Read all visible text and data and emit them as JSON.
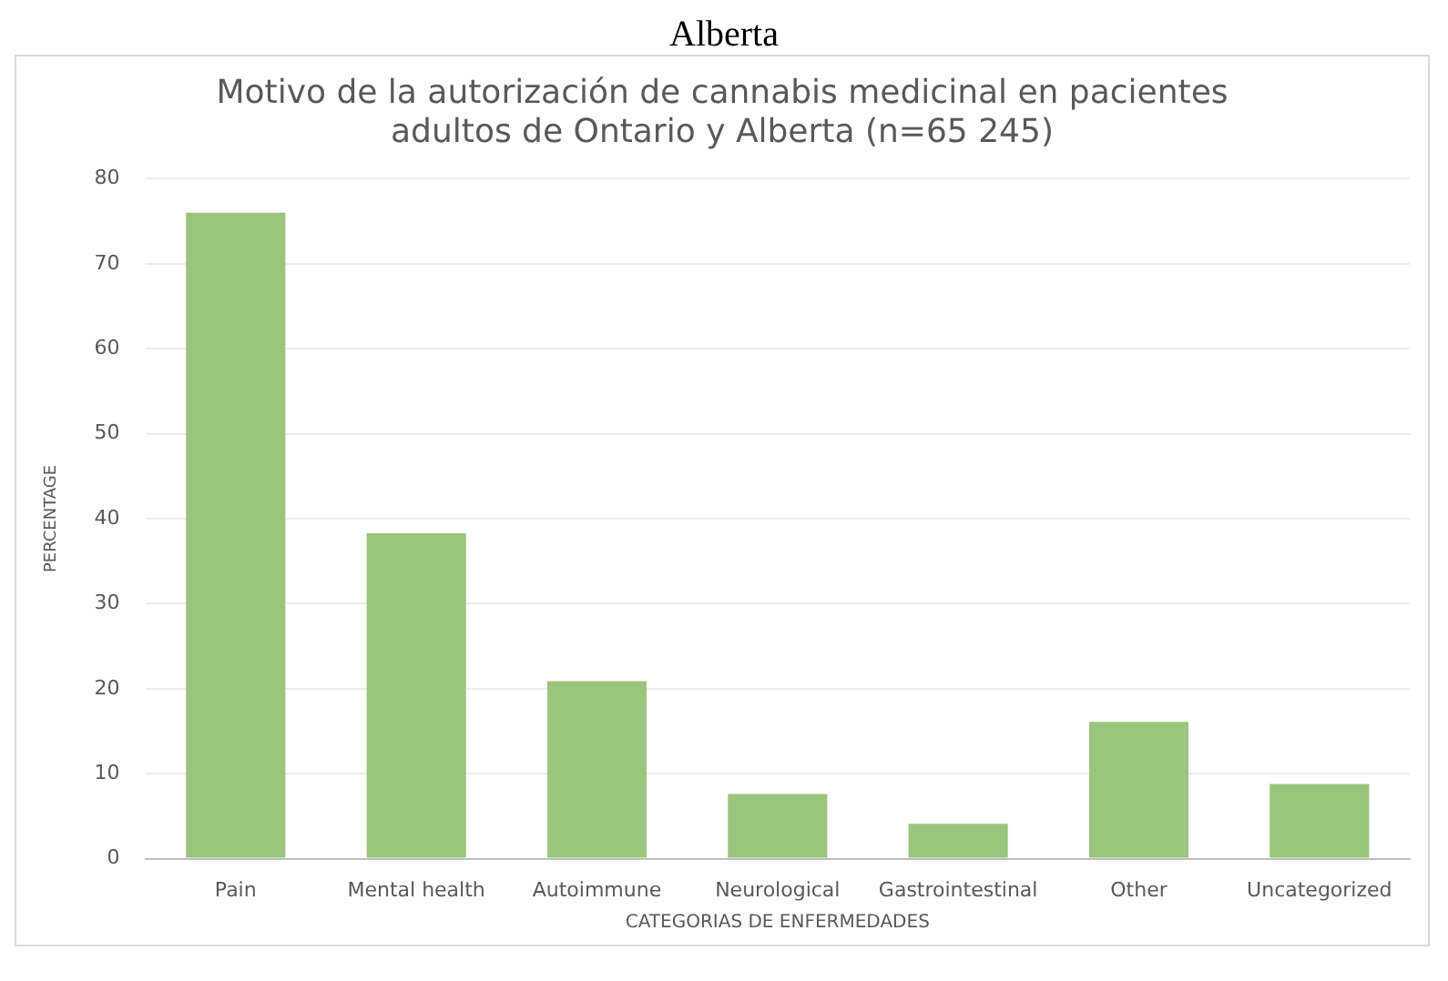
{
  "chart_data": {
    "type": "bar",
    "title": "Motivo de la autorización de cannabis medicinal en pacientes adultos de Ontario y Alberta (n=65 245)",
    "annotations": [
      "Alberta"
    ],
    "xlabel": "CATEGORIAS DE ENFERMEDADES",
    "ylabel": "PERCENTAGE",
    "categories": [
      "Pain",
      "Mental health",
      "Autoimmune",
      "Neurological",
      "Gastrointestinal",
      "Other",
      "Uncategorized"
    ],
    "values": [
      76,
      38.3,
      20.9,
      7.6,
      4.1,
      16.1,
      8.8
    ],
    "color": "#9bc47d",
    "ylim": [
      0,
      80
    ],
    "yticks": [
      0,
      10,
      20,
      30,
      40,
      50,
      60,
      70,
      80
    ],
    "grid": "y",
    "legend": false
  }
}
